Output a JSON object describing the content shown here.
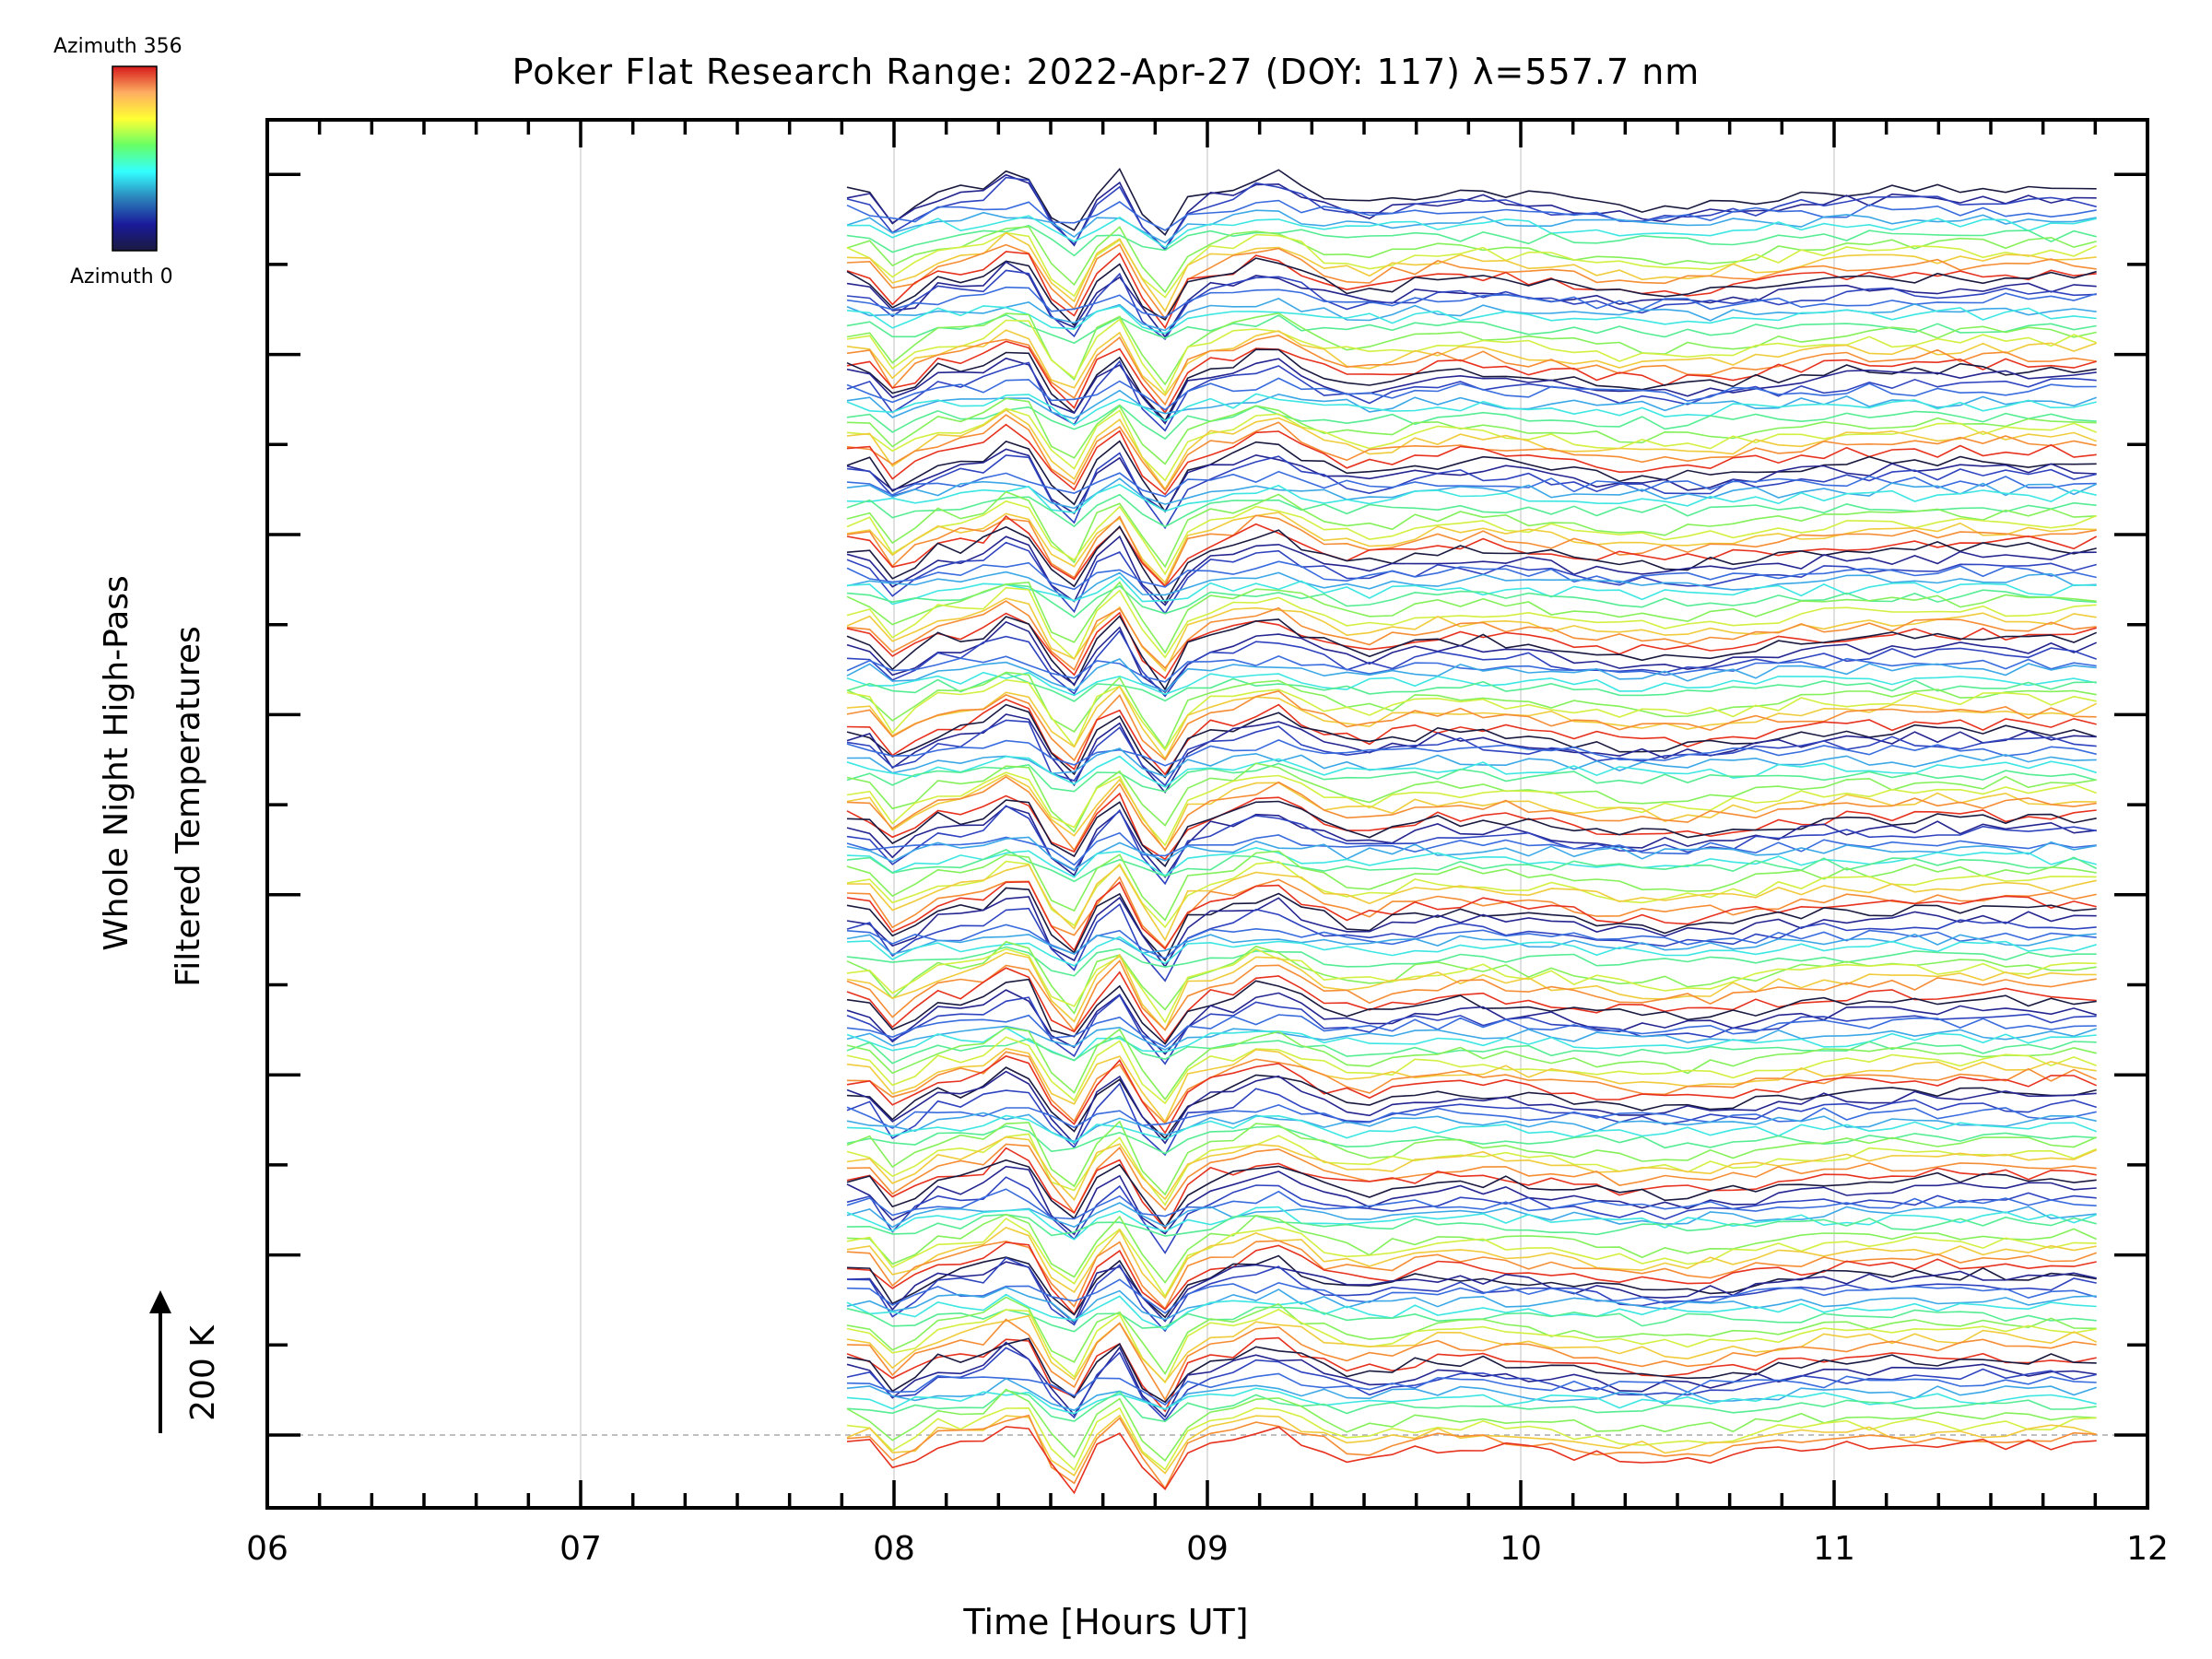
{
  "chart_data": {
    "type": "line",
    "title": "Poker Flat Research Range: 2022-Apr-27 (DOY: 117) λ=557.7 nm",
    "xlabel": "Time [Hours UT]",
    "ylabel_lines": [
      "Whole Night High-Pass",
      "Filtered Temperatures"
    ],
    "scale_label": "200 K",
    "xlim": [
      6,
      12
    ],
    "x_ticks": [
      "06",
      "07",
      "08",
      "09",
      "10",
      "11",
      "12"
    ],
    "x_data_range": [
      7.85,
      11.9
    ],
    "colorbar": {
      "top_label": "Azimuth 356",
      "bottom_label": "Azimuth 0",
      "colors": [
        "#d7191c",
        "#fdae61",
        "#ffff33",
        "#66ff66",
        "#33ffff",
        "#2b83ba",
        "#1a1a9a",
        "#1a1a40"
      ]
    },
    "series_groups": 14,
    "lines_per_group": 12,
    "grid": true
  }
}
